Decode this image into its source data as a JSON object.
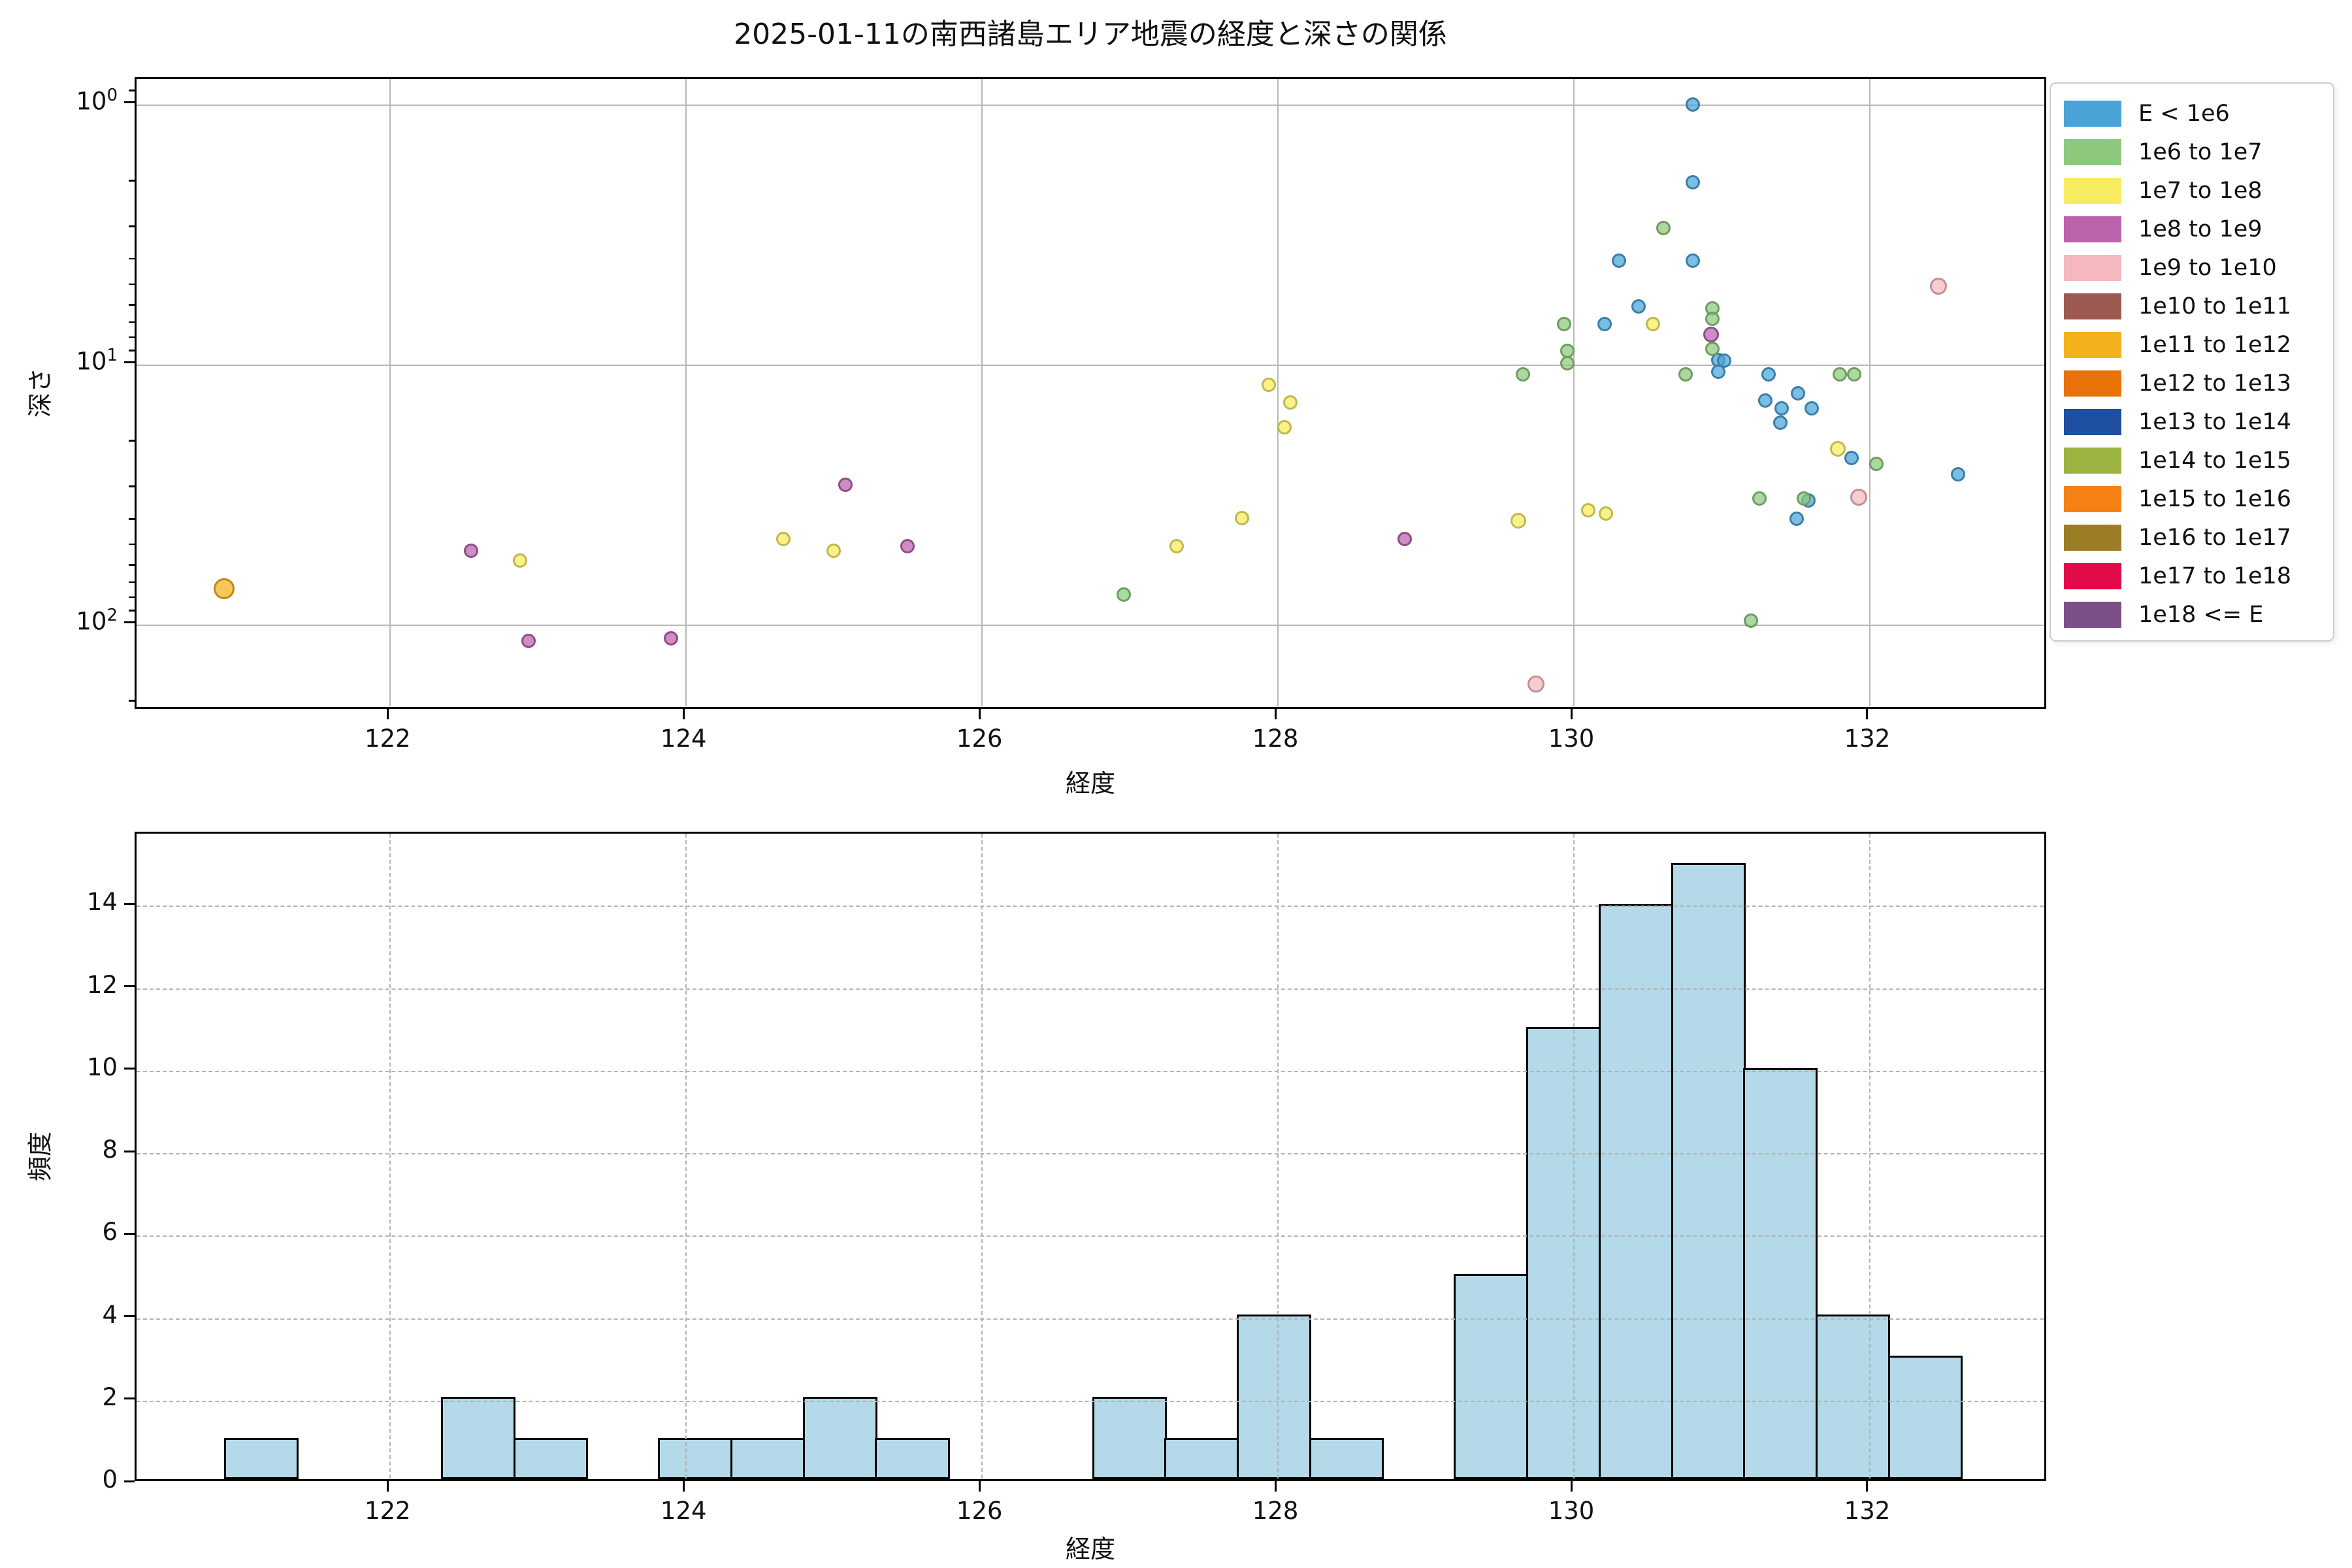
{
  "chart_data": [
    {
      "type": "scatter",
      "title": "2025-01-11の南西諸島エリア地震の経度と深さの関係",
      "xlabel": "経度",
      "ylabel": "深さ",
      "xlim": [
        120.29,
        133.21
      ],
      "ylim_depth": [
        0.8,
        215
      ],
      "y_log": true,
      "y_inverted": true,
      "grid": "solid",
      "xticks": [
        122,
        124,
        126,
        128,
        130,
        132
      ],
      "ytick_exponents": [
        0,
        1,
        2
      ],
      "legend_position": "outside-right-top",
      "series": [
        {
          "name": "E < 1e6",
          "color": "#4aa3d8",
          "points": [
            [
              130.81,
              1.0
            ],
            [
              130.81,
              2.0
            ],
            [
              130.31,
              4.0
            ],
            [
              130.81,
              4.0
            ],
            [
              130.44,
              6.0
            ],
            [
              130.21,
              7.0
            ],
            [
              130.98,
              9.6
            ],
            [
              131.02,
              9.7
            ],
            [
              130.98,
              10.7
            ],
            [
              131.32,
              10.9
            ],
            [
              131.52,
              12.9
            ],
            [
              131.3,
              13.8
            ],
            [
              131.41,
              14.8
            ],
            [
              131.61,
              14.8
            ],
            [
              131.4,
              16.8
            ],
            [
              131.88,
              22.9
            ],
            [
              132.6,
              26.5
            ],
            [
              131.59,
              33.3
            ],
            [
              131.51,
              39.2
            ]
          ]
        },
        {
          "name": "1e6 to 1e7",
          "color": "#8cc97d",
          "points": [
            [
              126.96,
              77
            ],
            [
              130.61,
              3.0
            ],
            [
              129.94,
              7.0
            ],
            [
              130.94,
              6.1
            ],
            [
              130.94,
              6.7
            ],
            [
              130.94,
              8.7
            ],
            [
              129.96,
              8.9
            ],
            [
              129.96,
              9.9
            ],
            [
              129.66,
              10.9
            ],
            [
              130.76,
              10.9
            ],
            [
              131.8,
              10.9
            ],
            [
              131.9,
              10.9
            ],
            [
              132.05,
              24.1
            ],
            [
              131.26,
              32.9
            ],
            [
              131.56,
              32.8
            ],
            [
              131.2,
              97
            ]
          ]
        },
        {
          "name": "1e7 to 1e8",
          "color": "#f7ec5f",
          "points": [
            [
              122.88,
              57
            ],
            [
              124.66,
              47
            ],
            [
              125.0,
              52
            ],
            [
              127.32,
              50
            ],
            [
              127.76,
              39
            ],
            [
              127.94,
              12
            ],
            [
              128.05,
              17.5
            ],
            [
              128.09,
              14
            ],
            [
              130.54,
              7.0
            ],
            [
              131.79,
              21.1,
              12
            ],
            [
              130.1,
              36.5
            ],
            [
              130.22,
              37.5
            ],
            [
              129.63,
              40,
              12
            ]
          ]
        },
        {
          "name": "1e8 to 1e9",
          "color": "#ba62ac",
          "points": [
            [
              122.55,
              52
            ],
            [
              122.94,
              116
            ],
            [
              123.9,
              113
            ],
            [
              125.08,
              29
            ],
            [
              125.5,
              50
            ],
            [
              128.86,
              47
            ],
            [
              130.93,
              7.7,
              12
            ]
          ]
        },
        {
          "name": "1e9 to 1e10",
          "color": "#f5b8bf",
          "points": [
            [
              129.75,
              170,
              13
            ],
            [
              132.47,
              5.0,
              13
            ],
            [
              131.93,
              32.5,
              13
            ]
          ]
        },
        {
          "name": "1e10 to 1e11",
          "color": "#9d5a52",
          "points": []
        },
        {
          "name": "1e11 to 1e12",
          "color": "#f3b11b",
          "points": [
            [
              120.88,
              73,
              16
            ]
          ]
        },
        {
          "name": "1e12 to 1e13",
          "color": "#e87207",
          "points": []
        },
        {
          "name": "1e13 to 1e14",
          "color": "#1f4fa0",
          "points": []
        },
        {
          "name": "1e14 to 1e15",
          "color": "#9db33f",
          "points": []
        },
        {
          "name": "1e15 to 1e16",
          "color": "#f58114",
          "points": []
        },
        {
          "name": "1e16 to 1e17",
          "color": "#9c7d26",
          "points": []
        },
        {
          "name": "1e17 to 1e18",
          "color": "#e20a49",
          "points": []
        },
        {
          "name": "1e18 <= E",
          "color": "#7d4f88",
          "points": []
        }
      ]
    },
    {
      "type": "histogram",
      "xlabel": "経度",
      "ylabel": "頻度",
      "xlim": [
        120.29,
        133.21
      ],
      "ylim": [
        0,
        15.75
      ],
      "grid": "dashed",
      "xticks": [
        122,
        124,
        126,
        128,
        130,
        132
      ],
      "yticks": [
        0,
        2,
        4,
        6,
        8,
        10,
        12,
        14
      ],
      "bin_start": 120.88,
      "bin_width": 0.489,
      "counts": [
        1,
        0,
        0,
        2,
        1,
        0,
        1,
        1,
        2,
        1,
        0,
        0,
        2,
        1,
        4,
        1,
        0,
        5,
        11,
        14,
        15,
        10,
        4,
        3
      ],
      "total": 79,
      "bar_fill": "#b4d9e8",
      "bar_edge": "#000000"
    }
  ]
}
